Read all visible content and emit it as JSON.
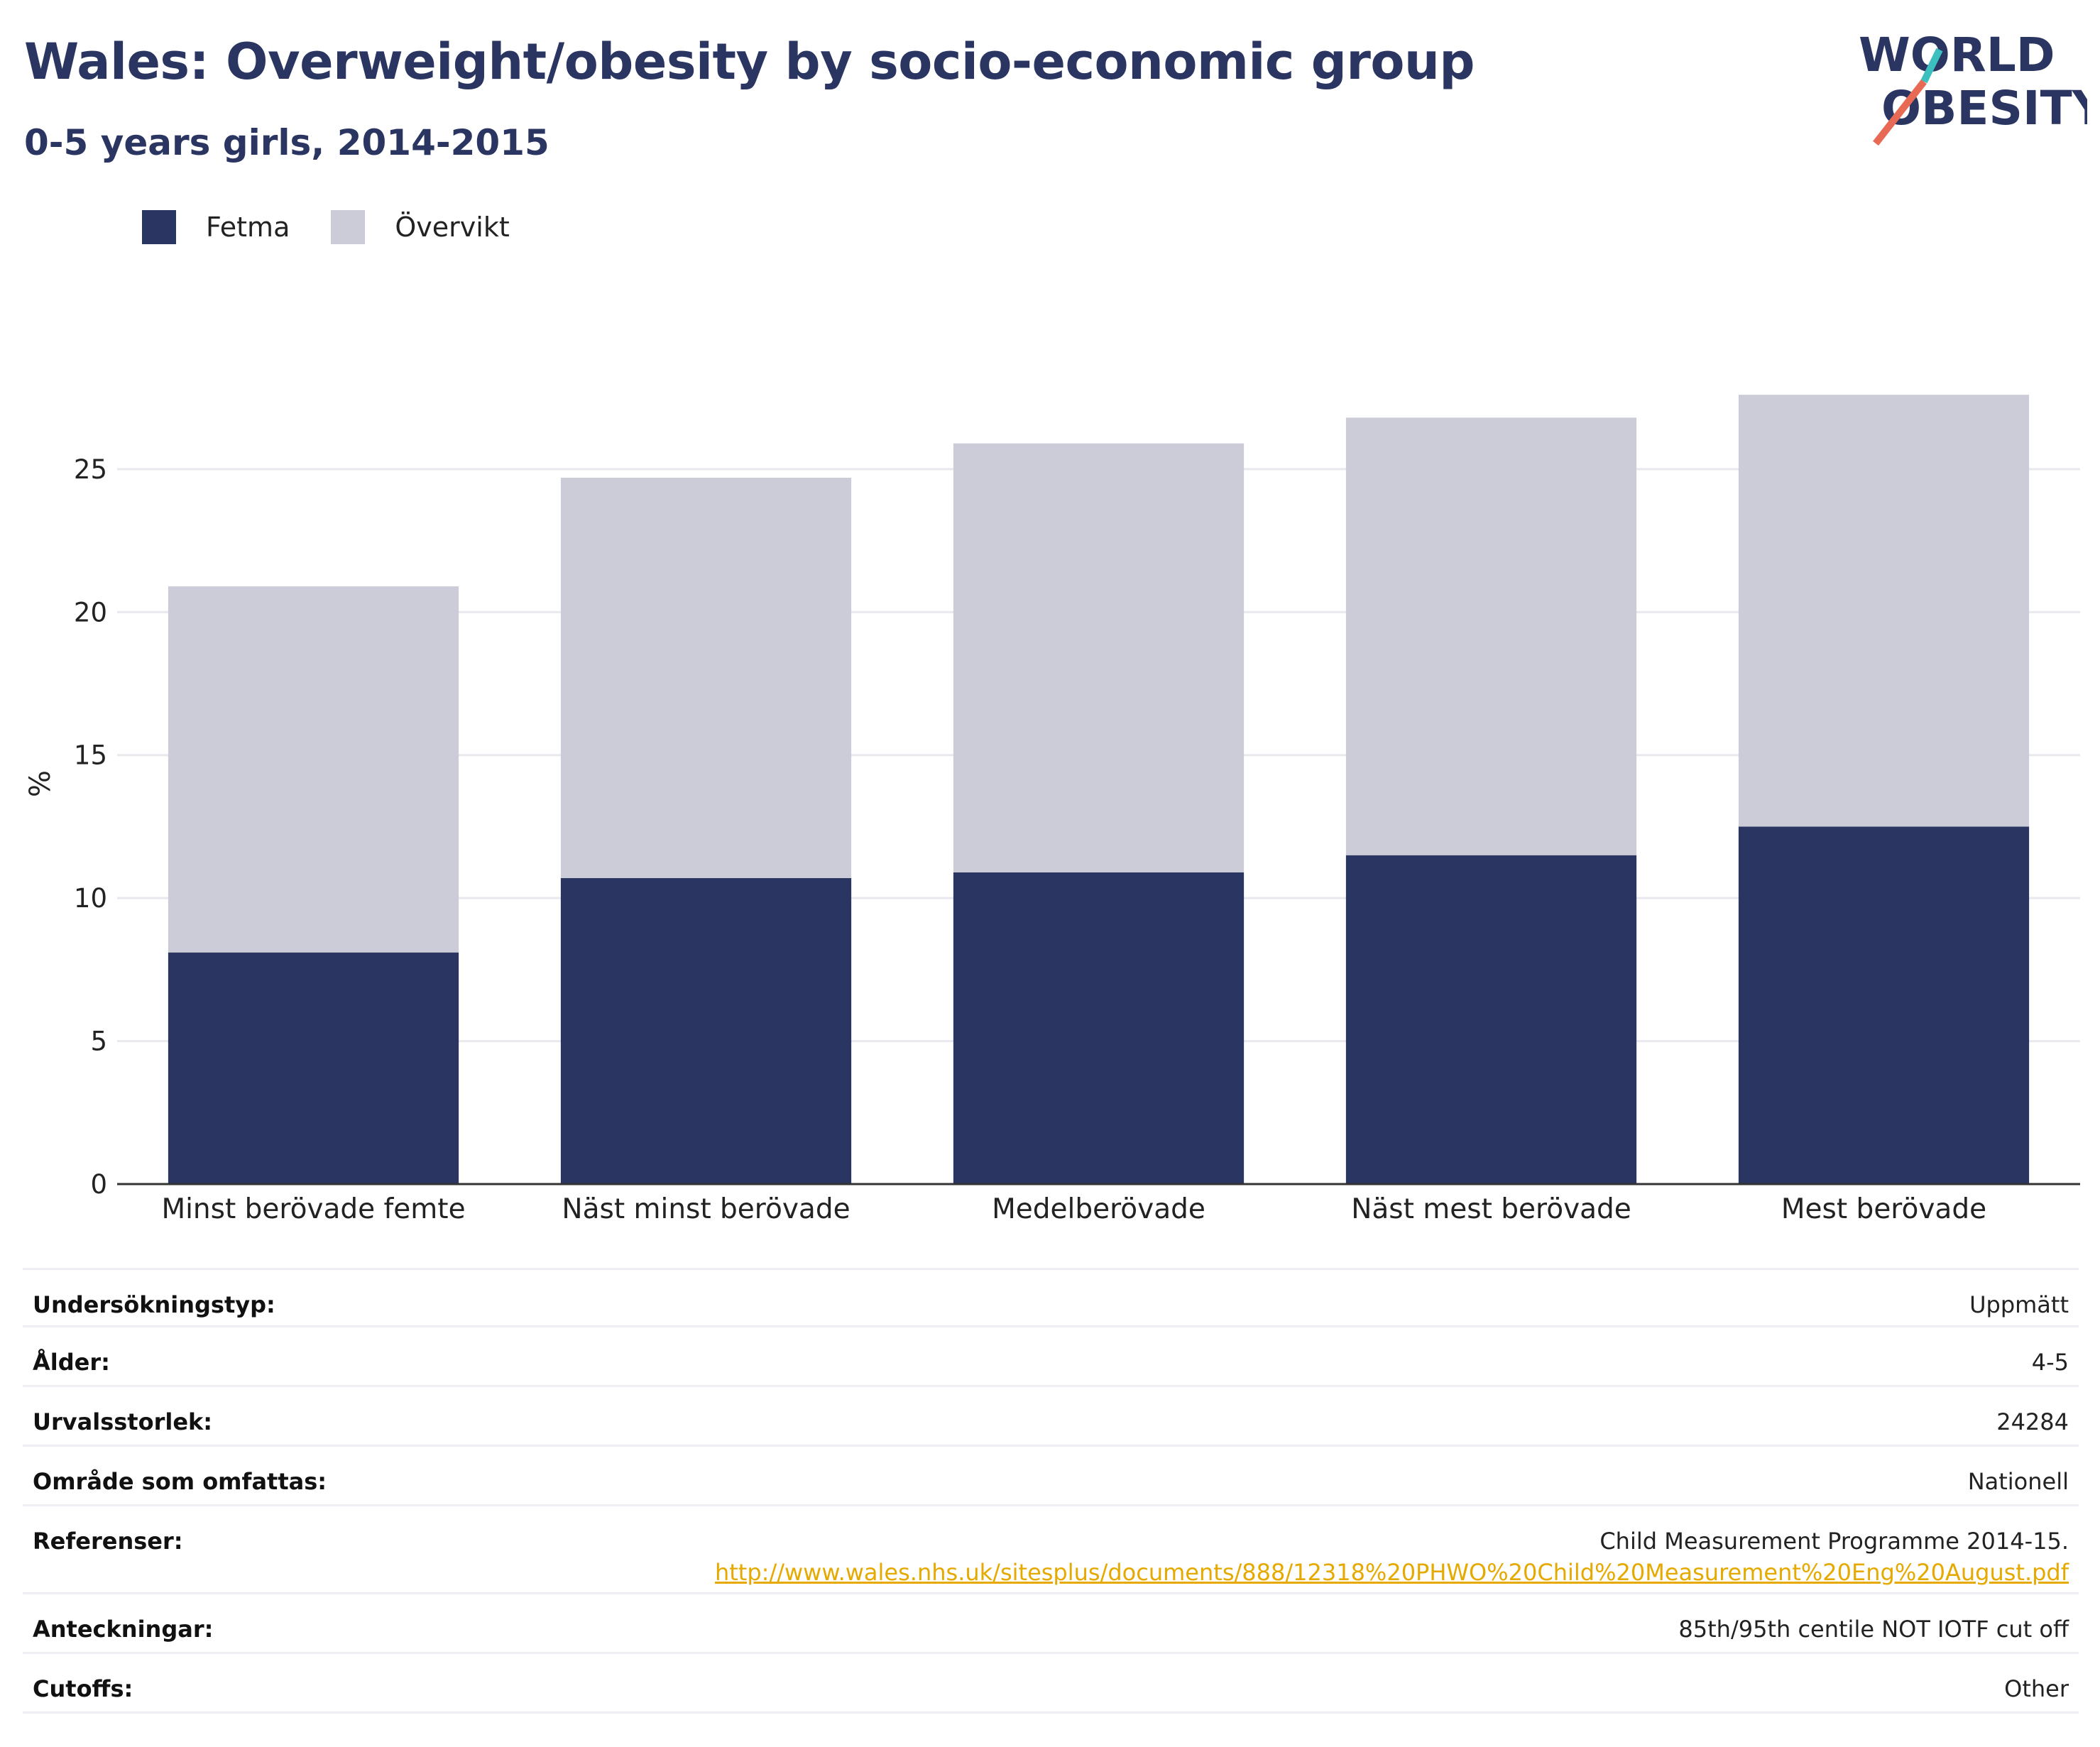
{
  "title": "Wales: Overweight/obesity by socio-economic group",
  "subtitle": "0-5 years girls, 2014-2015",
  "logo": {
    "line1": "WORLD",
    "line2": "OBESITY",
    "colors": [
      "#2a3661",
      "#3cbfbf",
      "#e86a55"
    ]
  },
  "colors": {
    "fetma": "#2a3661",
    "overvikt": "#cbccd8",
    "axis": "#333333",
    "grid": "#e8e8ee",
    "link": "#e5a900"
  },
  "chart_data": {
    "type": "bar",
    "stacked": true,
    "categories": [
      "Minst berövade femte",
      "Näst minst berövade",
      "Medelberövade",
      "Näst mest berövade",
      "Mest berövade"
    ],
    "series": [
      {
        "name": "Fetma",
        "values": [
          8.1,
          10.7,
          10.9,
          11.5,
          12.5
        ]
      },
      {
        "name": "Övervikt",
        "values": [
          12.8,
          14.0,
          15.0,
          15.3,
          15.1
        ]
      }
    ],
    "ylabel": "%",
    "ylim": [
      0,
      28
    ],
    "yticks": [
      0,
      5,
      10,
      15,
      20,
      25
    ],
    "grid": true,
    "legend": "top-left"
  },
  "info": [
    {
      "label": "Undersökningstyp:",
      "value": "Uppmätt"
    },
    {
      "label": "Ålder:",
      "value": "4-5"
    },
    {
      "label": "Urvalsstorlek:",
      "value": "24284"
    },
    {
      "label": "Område som omfattas:",
      "value": "Nationell"
    },
    {
      "label": "Referenser:",
      "value": "Child Measurement Programme 2014-15.",
      "link": "http://www.wales.nhs.uk/sitesplus/documents/888/12318%20PHWO%20Child%20Measurement%20Eng%20August.pdf"
    },
    {
      "label": "Anteckningar:",
      "value": "85th/95th centile NOT IOTF cut off"
    },
    {
      "label": "Cutoffs:",
      "value": "Other"
    }
  ]
}
